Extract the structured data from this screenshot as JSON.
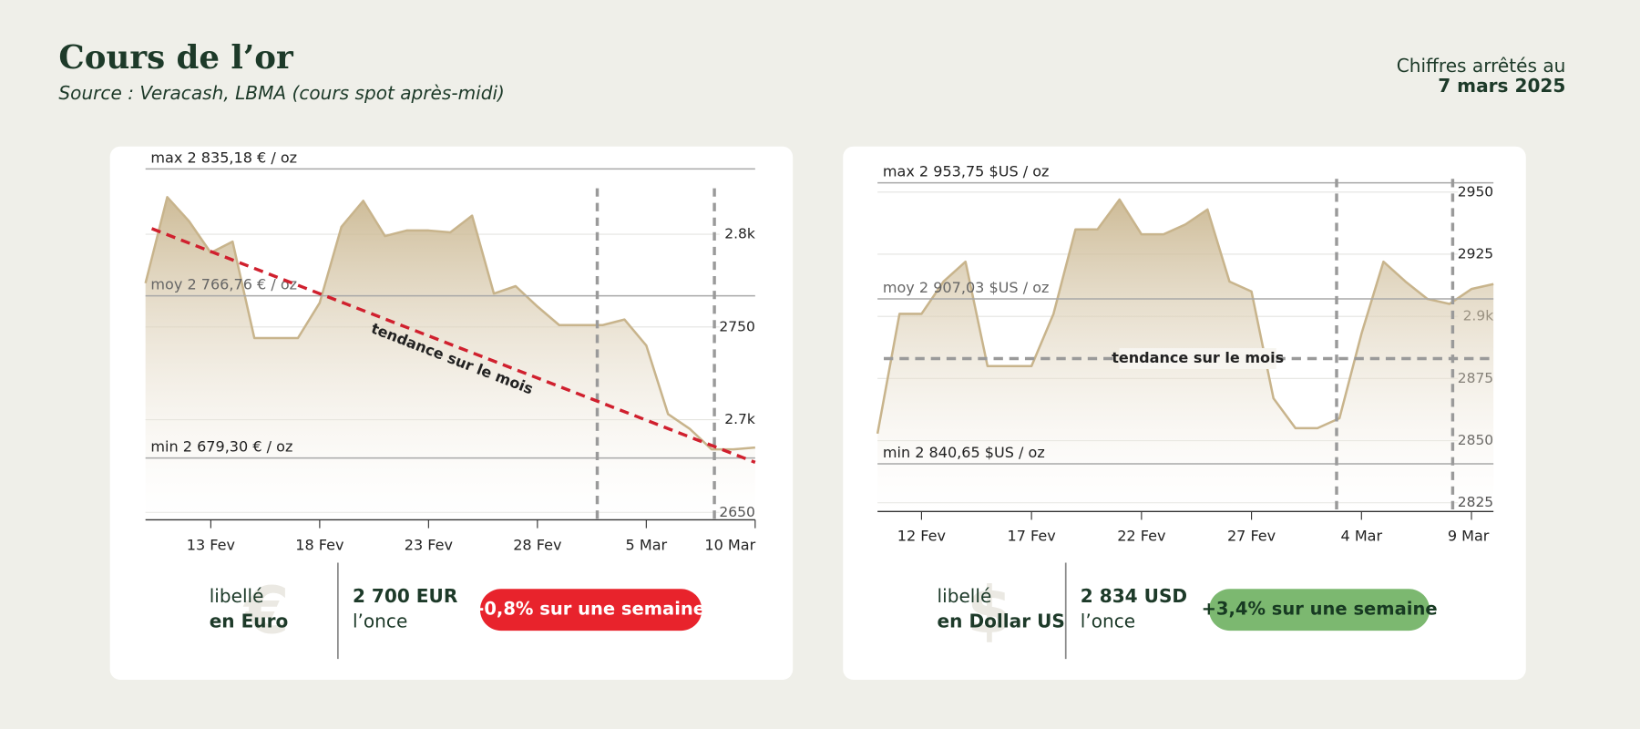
{
  "header": {
    "title": "Cours de l’or",
    "source": "Source : Veracash, LBMA (cours spot après-midi)",
    "date_label": "Chiffres arrêtés au",
    "date": "7 mars 2025"
  },
  "chart_data": [
    {
      "type": "area",
      "color": "#c8b48c",
      "categories": [
        null,
        null,
        null,
        "13 Fev",
        null,
        null,
        null,
        null,
        "18 Fev",
        null,
        null,
        null,
        null,
        "23 Fev",
        null,
        null,
        null,
        null,
        "28 Fev",
        null,
        null,
        null,
        null,
        "5 Mar",
        null,
        null,
        null,
        null,
        "10 Mar"
      ],
      "values": [
        2773.6,
        2820,
        2807,
        2790,
        2796,
        2744,
        2744,
        2744,
        2763,
        2804,
        2818,
        2799,
        2802,
        2802,
        2801,
        2810,
        2768,
        2772,
        2761,
        2751,
        2751,
        2751,
        2754,
        2740,
        2703,
        2695,
        2684,
        2684,
        2685
      ],
      "ylim": [
        2646,
        2840
      ],
      "yticks": [
        2650,
        {
          "value": 2700,
          "label": "2.7k"
        },
        2750,
        {
          "value": 2800,
          "label": "2.8k"
        }
      ],
      "grid": true,
      "reference_lines": [
        {
          "value": 2835.18,
          "label": "max 2 835,18 € / oz"
        },
        {
          "value": 2766.76,
          "label": "moy 2 766,76 € / oz"
        },
        {
          "value": 2679.3,
          "label": "min 2 679,30 € / oz"
        }
      ],
      "trend": {
        "label": "tendance sur le mois",
        "values": [
          2803,
          2677
        ],
        "color": "#d0202e"
      },
      "summary": {
        "symbol": "€",
        "caption": "libellé",
        "currency": "en Euro",
        "price": "2 700 EUR",
        "unit": "l’once",
        "change": "-0,8% sur une semaine",
        "change_color": "#e8232c",
        "change_text_color": "#ffffff"
      }
    },
    {
      "type": "area",
      "color": "#c8b48c",
      "categories": [
        null,
        null,
        "12 Fev",
        null,
        null,
        null,
        null,
        "17 Fev",
        null,
        null,
        null,
        null,
        "22 Fev",
        null,
        null,
        null,
        null,
        "27 Fev",
        null,
        null,
        null,
        null,
        "4 Mar",
        null,
        null,
        null,
        null,
        "9 Mar",
        null
      ],
      "values": [
        2852.8,
        2901,
        2901,
        2914,
        2922,
        2880,
        2880,
        2880,
        2901,
        2935,
        2935,
        2947,
        2933,
        2933,
        2937,
        2943,
        2914,
        2910,
        2867,
        2855,
        2855,
        2859,
        2893,
        2922,
        2914,
        2907,
        2905,
        2911,
        2913
      ],
      "ylim": [
        2821.5,
        2956
      ],
      "yticks": [
        2825,
        2850,
        2875,
        {
          "value": 2900,
          "label": "2.9k"
        },
        2925,
        2950
      ],
      "grid": true,
      "reference_lines": [
        {
          "value": 2953.75,
          "label": "max 2 953,75 $US / oz"
        },
        {
          "value": 2907.03,
          "label": "moy 2 907,03 $US / oz"
        },
        {
          "value": 2840.65,
          "label": "min 2 840,65 $US / oz"
        }
      ],
      "trend": {
        "label": "tendance sur le mois",
        "values": [
          2883,
          2883
        ],
        "color": "#9a9a9a"
      },
      "summary": {
        "symbol": "$",
        "caption": "libellé",
        "currency": "en Dollar US",
        "price": "2 834  USD",
        "unit": "l’once",
        "change": "+3,4% sur une semaine",
        "change_color": "#7cb870",
        "change_text_color": "#173a22"
      }
    }
  ]
}
